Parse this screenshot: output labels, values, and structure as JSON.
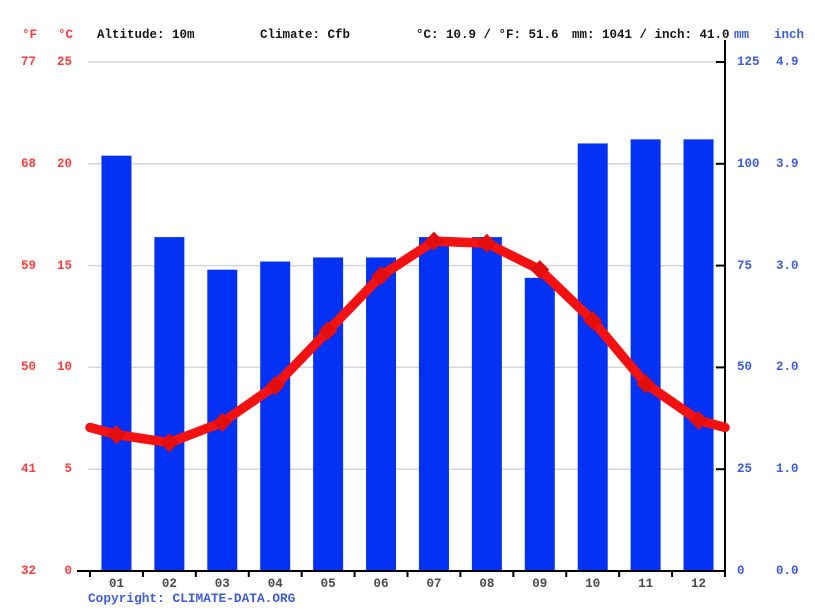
{
  "header": {
    "f_symbol": "°F",
    "c_symbol": "°C",
    "altitude": "Altitude: 10m",
    "climate": "Climate: Cfb",
    "temperature_summary": "°C: 10.9 / °F: 51.6",
    "precipitation_summary": "mm: 1041 / inch: 41.0",
    "mm_label": "mm",
    "inch_label": "inch"
  },
  "footer": {
    "copyright_label": "Copyright: ",
    "link_text": "CLIMATE-DATA.ORG"
  },
  "colors": {
    "bar_blue": "#0432f4",
    "line_red": "#f41111",
    "marker_red": "#e20d0d",
    "red_label": "#ff3b3b",
    "blue_label": "#3e5ce0",
    "black_text": "#161616",
    "month_label": "#4a4a4a",
    "gridline": "#d6d6d6",
    "axis_black": "#000000"
  },
  "chart_data": {
    "type": "bar",
    "subtype": "climate combo: precipitation bars + temperature line",
    "categories": [
      "01",
      "02",
      "03",
      "04",
      "05",
      "06",
      "07",
      "08",
      "09",
      "10",
      "11",
      "12"
    ],
    "series": [
      {
        "name": "precipitation",
        "type": "bar",
        "unit": "mm",
        "values": [
          102,
          82,
          74,
          76,
          77,
          77,
          82,
          82,
          72,
          105,
          106,
          106
        ]
      },
      {
        "name": "temperature",
        "type": "line",
        "unit": "°C",
        "values": [
          6.7,
          6.3,
          7.3,
          9.1,
          11.8,
          14.5,
          16.2,
          16.1,
          14.8,
          12.3,
          9.2,
          7.4
        ]
      }
    ],
    "left_axis": {
      "fahrenheit_ticks": [
        "77",
        "68",
        "59",
        "50",
        "41",
        "32"
      ],
      "celsius_ticks": [
        "25",
        "20",
        "15",
        "10",
        "5",
        "0"
      ],
      "celsius_range": [
        0,
        25
      ]
    },
    "right_axis": {
      "mm_ticks": [
        "125",
        "100",
        "75",
        "50",
        "25",
        "0"
      ],
      "inch_ticks": [
        "4.9",
        "3.9",
        "3.0",
        "2.0",
        "1.0",
        "0.0"
      ],
      "mm_range": [
        0,
        125
      ]
    },
    "grid": true,
    "line_extends_to_plot_edges": true,
    "annual_mean_temp_c": 10.9,
    "annual_precip_mm": 1041
  }
}
